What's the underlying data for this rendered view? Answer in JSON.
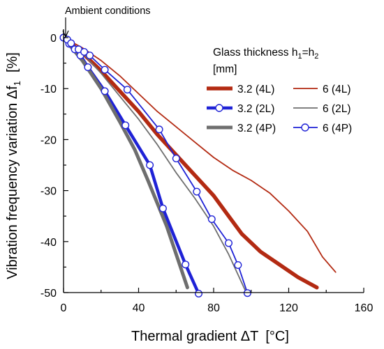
{
  "chart_data": {
    "type": "line",
    "annotation": "Ambient conditions",
    "xlabel": "Thermal gradient ΔT",
    "xlabel_unit": "[°C]",
    "ylabel": "Vibration frequency variation Δf",
    "ylabel_subscript": "1",
    "ylabel_unit": "[%]",
    "xlim": [
      0,
      160
    ],
    "ylim": [
      -50,
      0
    ],
    "xticks": [
      0,
      40,
      80,
      120,
      160
    ],
    "yticks": [
      0,
      -10,
      -20,
      -30,
      -40,
      -50
    ],
    "grid": false,
    "legend_title_line1": "Glass thickness h",
    "legend_title_sub1": "1",
    "legend_title_eq": "=h",
    "legend_title_sub2": "2",
    "legend_title_line2": "[mm]",
    "legend_position": "top-right",
    "series": [
      {
        "name": "3.2 (4L)",
        "color": "#b32a12",
        "width": 5.5,
        "marker": false,
        "points": [
          [
            0,
            0
          ],
          [
            10,
            -3
          ],
          [
            20,
            -6.5
          ],
          [
            30,
            -10.5
          ],
          [
            40,
            -14.5
          ],
          [
            50,
            -19
          ],
          [
            60,
            -23
          ],
          [
            70,
            -27
          ],
          [
            80,
            -31
          ],
          [
            88,
            -35
          ],
          [
            95,
            -38.5
          ],
          [
            105,
            -42
          ],
          [
            115,
            -44.5
          ],
          [
            125,
            -47
          ],
          [
            135,
            -49
          ]
        ]
      },
      {
        "name": "6 (4L)",
        "color": "#b32a12",
        "width": 1.8,
        "marker": false,
        "points": [
          [
            0,
            0
          ],
          [
            10,
            -2
          ],
          [
            20,
            -4.5
          ],
          [
            30,
            -7.5
          ],
          [
            40,
            -11
          ],
          [
            50,
            -14.5
          ],
          [
            60,
            -17.5
          ],
          [
            70,
            -20.5
          ],
          [
            80,
            -23.5
          ],
          [
            90,
            -26
          ],
          [
            100,
            -28
          ],
          [
            110,
            -30.5
          ],
          [
            120,
            -34
          ],
          [
            130,
            -38
          ],
          [
            138,
            -43
          ],
          [
            145,
            -46
          ]
        ]
      },
      {
        "name": "3.2 (2L)",
        "color": "#1f22d6",
        "width": 4.5,
        "marker": true,
        "points": [
          [
            0,
            0
          ],
          [
            3,
            -1.2
          ],
          [
            6,
            -2.3
          ],
          [
            9,
            -3.5
          ],
          [
            13,
            -5.8
          ],
          [
            22,
            -10.5
          ],
          [
            33,
            -17.2
          ],
          [
            46,
            -25
          ],
          [
            53,
            -33.5
          ],
          [
            65,
            -44.5
          ],
          [
            72,
            -50.2
          ]
        ]
      },
      {
        "name": "6 (2L)",
        "color": "#6e6e6e",
        "width": 1.8,
        "marker": false,
        "points": [
          [
            0,
            0
          ],
          [
            10,
            -3
          ],
          [
            20,
            -7
          ],
          [
            30,
            -11.5
          ],
          [
            40,
            -16
          ],
          [
            50,
            -21
          ],
          [
            60,
            -26.5
          ],
          [
            70,
            -31.5
          ],
          [
            80,
            -37
          ],
          [
            88,
            -42.5
          ],
          [
            98,
            -50.5
          ]
        ]
      },
      {
        "name": "3.2 (4P)",
        "color": "#6e6e6e",
        "width": 5,
        "marker": false,
        "points": [
          [
            0,
            0
          ],
          [
            10,
            -4.5
          ],
          [
            20,
            -10
          ],
          [
            30,
            -16.5
          ],
          [
            38,
            -22
          ],
          [
            45,
            -28
          ],
          [
            55,
            -37
          ],
          [
            66,
            -49
          ]
        ]
      },
      {
        "name": "6 (4P)",
        "color": "#1f22d6",
        "width": 1.8,
        "marker": true,
        "points": [
          [
            0,
            0
          ],
          [
            2,
            -0.4
          ],
          [
            4,
            -1.1
          ],
          [
            8,
            -2.3
          ],
          [
            11,
            -2.8
          ],
          [
            14,
            -3.5
          ],
          [
            22,
            -6.3
          ],
          [
            34,
            -10.2
          ],
          [
            51,
            -18
          ],
          [
            60,
            -23.7
          ],
          [
            71,
            -30.2
          ],
          [
            79,
            -35.6
          ],
          [
            88,
            -40.3
          ],
          [
            93,
            -44.6
          ],
          [
            98,
            -50.1
          ]
        ]
      }
    ]
  }
}
